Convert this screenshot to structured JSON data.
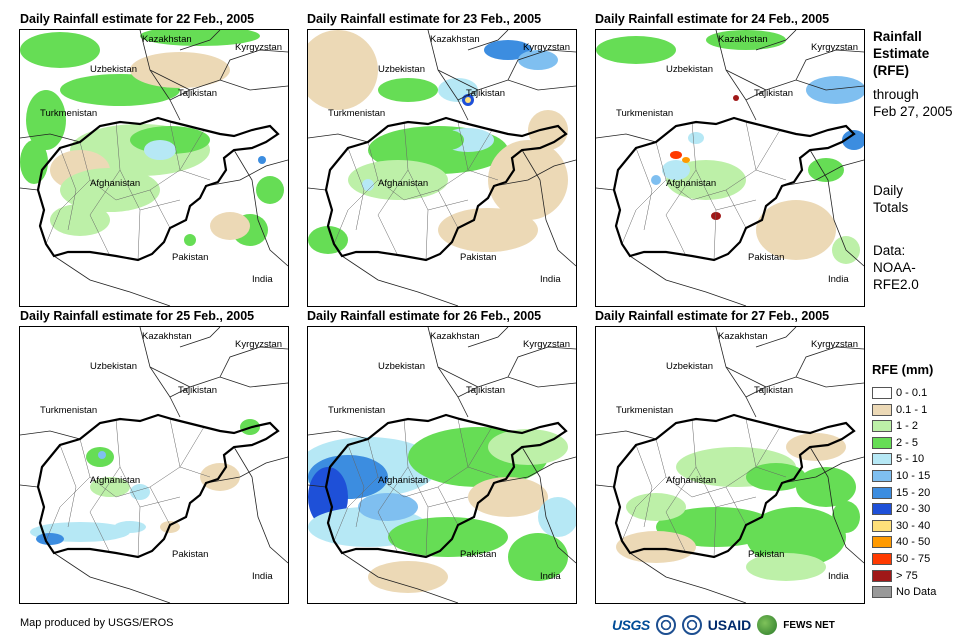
{
  "panels": [
    {
      "title": "Daily Rainfall estimate for 22 Feb., 2005",
      "date": "22 Feb., 2005"
    },
    {
      "title": "Daily Rainfall estimate for 23 Feb., 2005",
      "date": "23 Feb., 2005"
    },
    {
      "title": "Daily Rainfall estimate for 24 Feb., 2005",
      "date": "24 Feb., 2005"
    },
    {
      "title": "Daily Rainfall estimate for 25 Feb., 2005",
      "date": "25 Feb., 2005"
    },
    {
      "title": "Daily Rainfall estimate for 26 Feb., 2005",
      "date": "26 Feb., 2005"
    },
    {
      "title": "Daily Rainfall estimate for 27 Feb., 2005",
      "date": "27 Feb., 2005"
    }
  ],
  "map_labels": {
    "kazakhstan": "Kazakhstan",
    "kyrgyzstan": "Kyrgyzstan",
    "uzbekistan": "Uzbekistan",
    "tajikistan": "Tajikistan",
    "turkmenistan": "Turkmenistan",
    "afghanistan": "Afghanistan",
    "pakistan": "Pakistan",
    "india": "India"
  },
  "sidebar": {
    "title_line1": "Rainfall",
    "title_line2": "Estimate",
    "title_line3": "(RFE)",
    "through_line1": "through",
    "through_line2": "Feb 27, 2005",
    "daily_line1": "Daily",
    "daily_line2": "Totals",
    "data_line1": "Data:",
    "data_line2": "NOAA-",
    "data_line3": "RFE2.0"
  },
  "legend": {
    "title": "RFE (mm)",
    "items": [
      {
        "label": "0 - 0.1",
        "color": "#ffffff"
      },
      {
        "label": "0.1 - 1",
        "color": "#ecd9b6"
      },
      {
        "label": "1 - 2",
        "color": "#bdf0a8"
      },
      {
        "label": "2 - 5",
        "color": "#66dd55"
      },
      {
        "label": "5 - 10",
        "color": "#b6e8f5"
      },
      {
        "label": "10 - 15",
        "color": "#7fbff0"
      },
      {
        "label": "15 - 20",
        "color": "#3c8de0"
      },
      {
        "label": "20 - 30",
        "color": "#1e50d8"
      },
      {
        "label": "30 - 40",
        "color": "#ffe07a"
      },
      {
        "label": "40 - 50",
        "color": "#ff9a00"
      },
      {
        "label": "50 - 75",
        "color": "#ff3a00"
      },
      {
        "label": "> 75",
        "color": "#a01818"
      },
      {
        "label": "No Data",
        "color": "#999999"
      }
    ]
  },
  "credit": "Map produced by USGS/EROS",
  "logos": {
    "usgs": "USGS",
    "usaid": "USAID",
    "fews": "FEWS NET"
  }
}
